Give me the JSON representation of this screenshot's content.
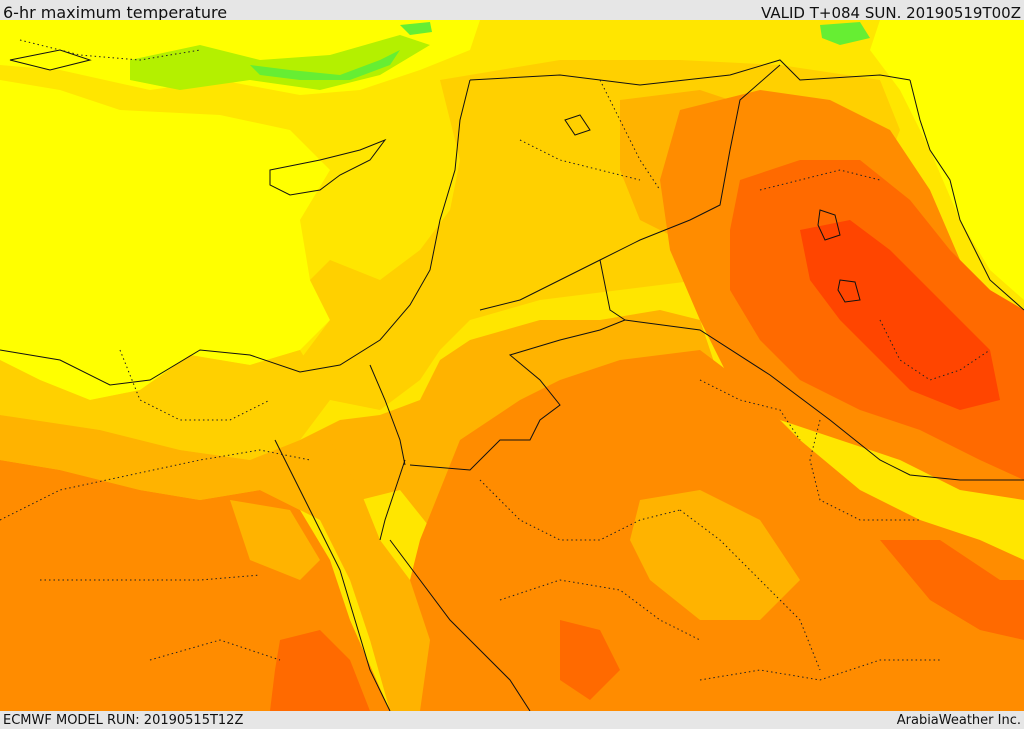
{
  "header": {
    "title": "6-hr maximum temperature",
    "valid_time": "VALID T+084 SUN. 20190519T00Z"
  },
  "footer": {
    "model_run": "ECMWF MODEL RUN: 20190515T12Z",
    "credit": "ArabiaWeather Inc."
  },
  "colors": {
    "bright_yellow": "#ffff00",
    "yellow": "#ffe600",
    "gold": "#ffd000",
    "light_orange": "#ffb300",
    "orange": "#ff8c00",
    "dark_orange": "#ff6a00",
    "red_orange": "#ff4500",
    "green": "#66ee33",
    "light_green": "#c8f000"
  }
}
